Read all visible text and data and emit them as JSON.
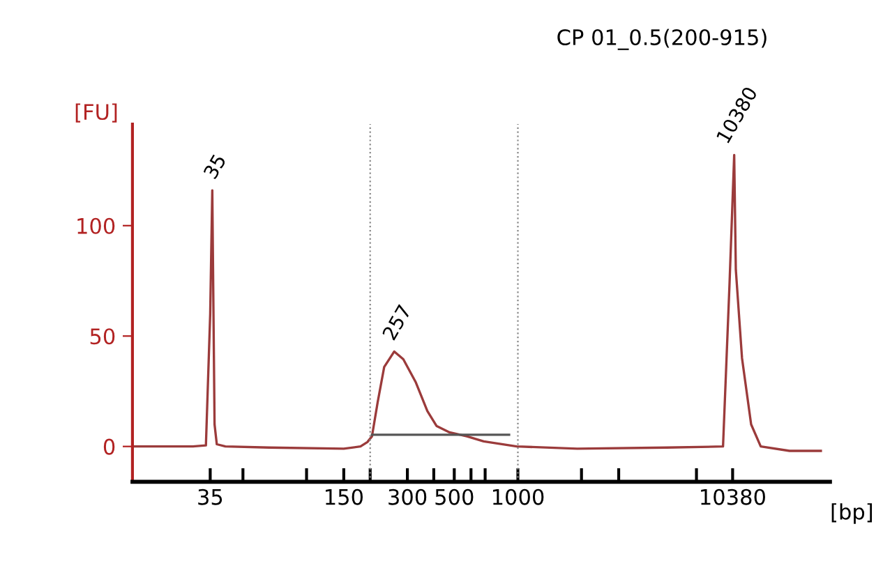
{
  "chart_data": {
    "type": "line",
    "title": "CP 01_0.5(200-915)",
    "xlabel": "[bp]",
    "ylabel": "[FU]",
    "series": [
      {
        "color": "#9b3b3b",
        "x": [
          15,
          29,
          33.4,
          35,
          35.8,
          36.7,
          37.6,
          41.3,
          66.6,
          150,
          180,
          194,
          204,
          217,
          233,
          260,
          287,
          329,
          373,
          412,
          475,
          574,
          689,
          987,
          1910,
          5060,
          9350,
          10030,
          10560,
          10750,
          11500,
          12700,
          14100,
          19300,
          27150
        ],
        "values": [
          0,
          0,
          0.5,
          60,
          116,
          10,
          1,
          0,
          -0.5,
          -1,
          0,
          2,
          4.6,
          20,
          36,
          43,
          39.5,
          29,
          16,
          9.3,
          6.4,
          4.6,
          2.3,
          0,
          -1,
          -0.5,
          0,
          73,
          132,
          80,
          40,
          10,
          0,
          -2,
          -2
        ]
      },
      {
        "color": "#555555",
        "x": [
          204,
          909
        ],
        "values": [
          5.3,
          5.3
        ]
      }
    ],
    "annotations": [
      {
        "text": "35",
        "x": 35.8,
        "y": 116
      },
      {
        "text": "257",
        "x": 260,
        "y": 43
      },
      {
        "text": "10380",
        "x": 10560,
        "y": 132
      }
    ],
    "ref_lines": [
      {
        "axis": "x",
        "value": 200,
        "color": "#888888",
        "line_style": "dotted"
      },
      {
        "axis": "x",
        "value": 1000,
        "color": "#888888",
        "line_style": "dotted"
      }
    ],
    "log": "x",
    "xlim": [
      15,
      30000
    ],
    "ylim": [
      -16,
      146
    ],
    "xticks": [
      35,
      {
        "value": 50,
        "label": null
      },
      {
        "value": 100,
        "label": null
      },
      150,
      {
        "value": 200,
        "label": null
      },
      300,
      {
        "value": 400,
        "label": null
      },
      500,
      {
        "value": 600,
        "label": null
      },
      {
        "value": 700,
        "label": null
      },
      1000,
      {
        "value": 2000,
        "label": null
      },
      {
        "value": 3000,
        "label": null
      },
      {
        "value": 7000,
        "label": null
      },
      10380
    ],
    "yticks": [
      0,
      50,
      100
    ],
    "grid": false,
    "legend": false,
    "marker": "none",
    "line_style": "solid"
  }
}
